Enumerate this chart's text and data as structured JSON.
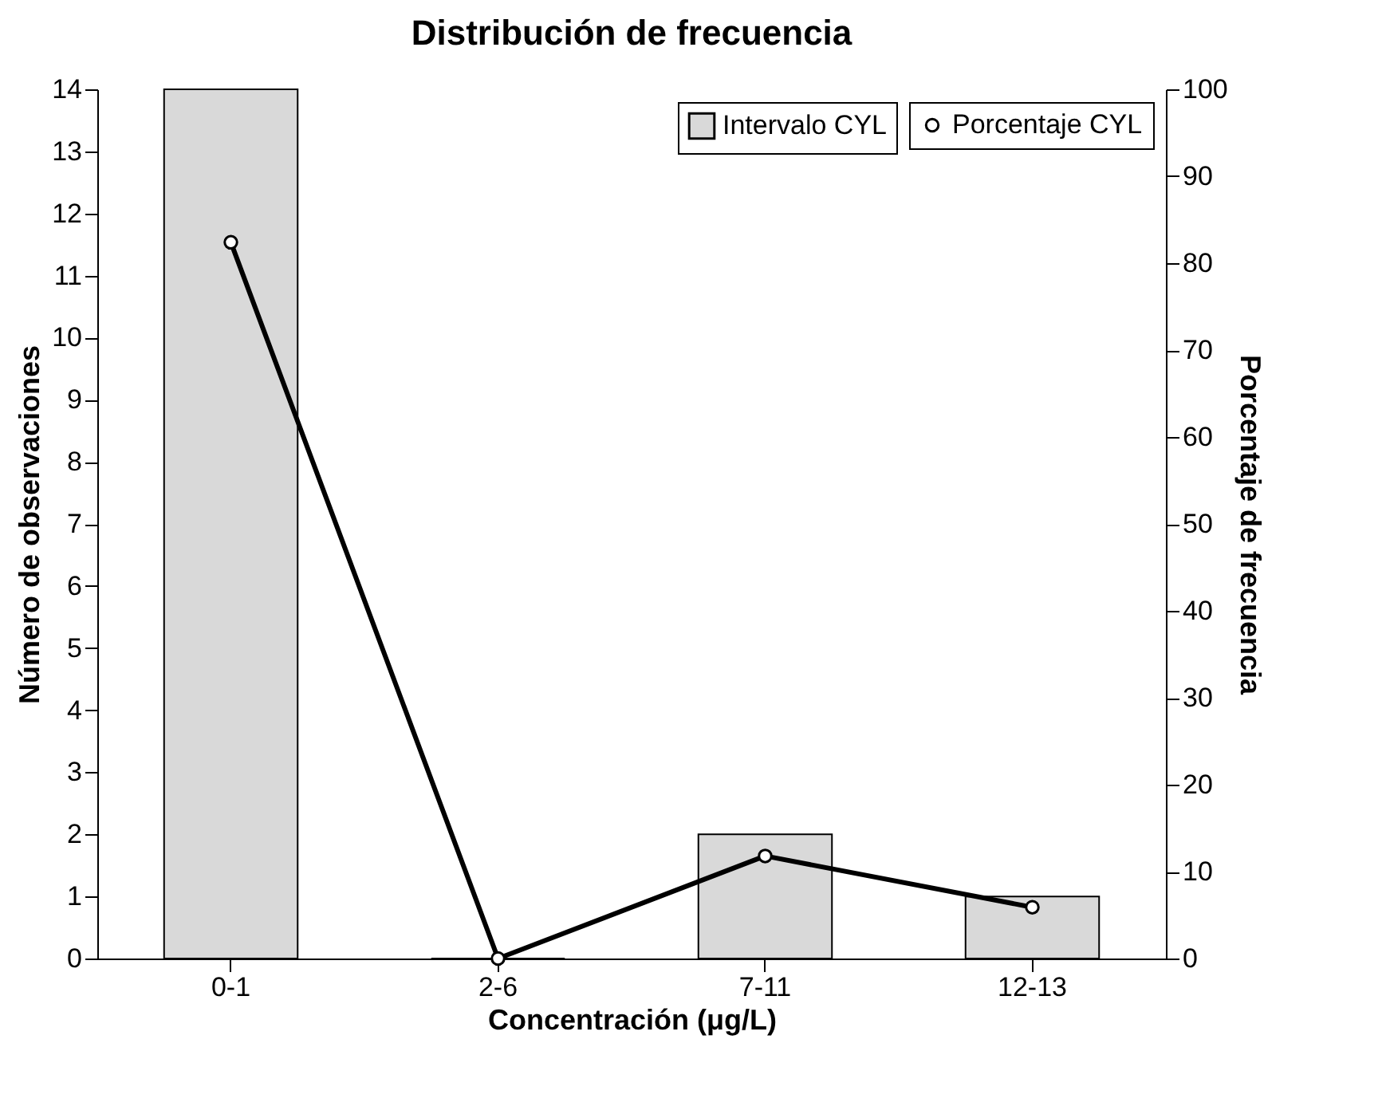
{
  "chart_data": {
    "type": "bar",
    "title": "Distribución de frecuencia",
    "xlabel": "Concentración (μg/L)",
    "ylabel": "Número de observaciones",
    "y2label": "Porcentaje de frecuencia",
    "categories": [
      "0-1",
      "2-6",
      "7-11",
      "12-13"
    ],
    "series": [
      {
        "name": "Intervalo CYL",
        "color": "#d9d9d9",
        "values": [
          14,
          0,
          2,
          1
        ]
      },
      {
        "name": "Porcentaje CYL",
        "type": "line",
        "axis": "y2",
        "color": "#000000",
        "values": [
          82.4,
          0,
          11.8,
          5.9
        ]
      }
    ],
    "ylim": [
      0,
      14
    ],
    "yticks": [
      0,
      1,
      2,
      3,
      4,
      5,
      6,
      7,
      8,
      9,
      10,
      11,
      12,
      13,
      14
    ],
    "y2lim": [
      0,
      100
    ],
    "y2ticks": [
      0,
      10,
      20,
      30,
      40,
      50,
      60,
      70,
      80,
      90,
      100
    ],
    "grid": false,
    "legend": "top right",
    "marker": "circle",
    "line_style": "solid"
  }
}
